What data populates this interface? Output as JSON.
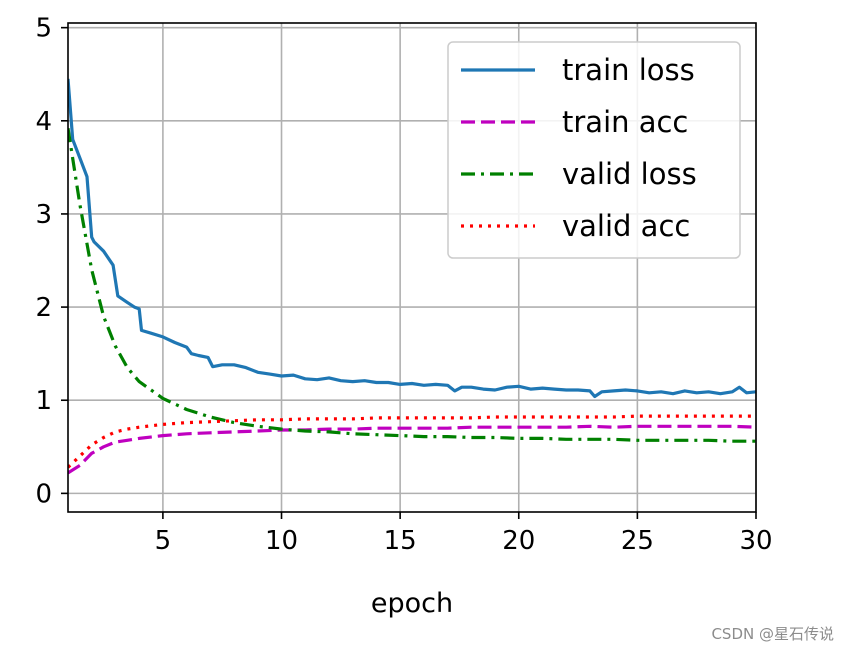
{
  "chart_data": {
    "type": "line",
    "xlabel": "epoch",
    "ylabel": "",
    "xlim": [
      1,
      30
    ],
    "ylim": [
      -0.2,
      5.05
    ],
    "xticks": [
      5,
      10,
      15,
      20,
      25,
      30
    ],
    "yticks": [
      0,
      1,
      2,
      3,
      4,
      5
    ],
    "grid": true,
    "legend_position": "top-right",
    "series": [
      {
        "name": "train loss",
        "color": "#1f77b4",
        "style": "solid",
        "x": [
          1.0,
          1.2,
          1.5,
          1.8,
          2.0,
          2.1,
          2.5,
          2.9,
          3.1,
          3.5,
          3.8,
          4.0,
          4.1,
          4.5,
          5.0,
          5.5,
          6.0,
          6.2,
          6.5,
          6.9,
          7.1,
          7.5,
          8.0,
          8.5,
          9.0,
          9.5,
          10.0,
          10.5,
          11.0,
          11.5,
          12.0,
          12.5,
          13.0,
          13.5,
          14.0,
          14.5,
          15.0,
          15.5,
          16.0,
          16.5,
          17.0,
          17.3,
          17.6,
          18.0,
          18.5,
          19.0,
          19.5,
          20.0,
          20.5,
          21.0,
          21.5,
          22.0,
          22.5,
          23.0,
          23.2,
          23.5,
          24.0,
          24.5,
          25.0,
          25.5,
          26.0,
          26.5,
          27.0,
          27.5,
          28.0,
          28.5,
          29.0,
          29.3,
          29.6,
          30.0
        ],
        "y": [
          4.45,
          3.8,
          3.6,
          3.4,
          2.75,
          2.7,
          2.6,
          2.45,
          2.12,
          2.05,
          2.0,
          1.98,
          1.75,
          1.72,
          1.68,
          1.62,
          1.57,
          1.5,
          1.48,
          1.46,
          1.36,
          1.38,
          1.38,
          1.35,
          1.3,
          1.28,
          1.26,
          1.27,
          1.23,
          1.22,
          1.24,
          1.21,
          1.2,
          1.21,
          1.19,
          1.19,
          1.17,
          1.18,
          1.16,
          1.17,
          1.16,
          1.1,
          1.14,
          1.14,
          1.12,
          1.11,
          1.14,
          1.15,
          1.12,
          1.13,
          1.12,
          1.11,
          1.11,
          1.1,
          1.04,
          1.09,
          1.1,
          1.11,
          1.1,
          1.08,
          1.09,
          1.07,
          1.1,
          1.08,
          1.09,
          1.07,
          1.09,
          1.14,
          1.08,
          1.09
        ]
      },
      {
        "name": "train acc",
        "color": "#bf00bf",
        "style": "dashed",
        "x": [
          1,
          1.5,
          2,
          2.5,
          3,
          3.5,
          4,
          5,
          6,
          7,
          8,
          9,
          10,
          11,
          12,
          13,
          14,
          15,
          16,
          17,
          18,
          19,
          20,
          21,
          22,
          23,
          24,
          25,
          26,
          27,
          28,
          29,
          30
        ],
        "y": [
          0.22,
          0.3,
          0.43,
          0.5,
          0.55,
          0.57,
          0.59,
          0.62,
          0.64,
          0.65,
          0.66,
          0.67,
          0.68,
          0.68,
          0.69,
          0.69,
          0.7,
          0.7,
          0.7,
          0.7,
          0.71,
          0.71,
          0.71,
          0.71,
          0.71,
          0.72,
          0.71,
          0.72,
          0.72,
          0.72,
          0.72,
          0.72,
          0.71
        ]
      },
      {
        "name": "valid loss",
        "color": "#008000",
        "style": "dashdot",
        "x": [
          1,
          1.5,
          2,
          2.5,
          3,
          3.5,
          4,
          5,
          6,
          7,
          8,
          9,
          10,
          11,
          12,
          13,
          14,
          15,
          16,
          17,
          18,
          19,
          20,
          21,
          22,
          23,
          24,
          25,
          26,
          27,
          28,
          29,
          30
        ],
        "y": [
          3.92,
          3.1,
          2.4,
          1.9,
          1.58,
          1.35,
          1.2,
          1.02,
          0.9,
          0.82,
          0.76,
          0.72,
          0.69,
          0.67,
          0.66,
          0.64,
          0.63,
          0.62,
          0.61,
          0.61,
          0.6,
          0.6,
          0.59,
          0.59,
          0.58,
          0.58,
          0.58,
          0.57,
          0.57,
          0.57,
          0.57,
          0.56,
          0.56
        ]
      },
      {
        "name": "valid acc",
        "color": "#ff0000",
        "style": "dotted",
        "x": [
          1,
          1.5,
          2,
          2.5,
          3,
          3.5,
          4,
          5,
          6,
          7,
          8,
          9,
          10,
          11,
          12,
          13,
          14,
          15,
          16,
          17,
          18,
          19,
          20,
          21,
          22,
          23,
          24,
          25,
          26,
          27,
          28,
          29,
          30
        ],
        "y": [
          0.28,
          0.4,
          0.52,
          0.6,
          0.66,
          0.69,
          0.71,
          0.74,
          0.76,
          0.77,
          0.78,
          0.79,
          0.79,
          0.8,
          0.8,
          0.8,
          0.81,
          0.81,
          0.81,
          0.81,
          0.81,
          0.82,
          0.82,
          0.82,
          0.82,
          0.82,
          0.82,
          0.83,
          0.83,
          0.83,
          0.83,
          0.83,
          0.83
        ]
      }
    ]
  },
  "watermark": "CSDN @星石传说"
}
